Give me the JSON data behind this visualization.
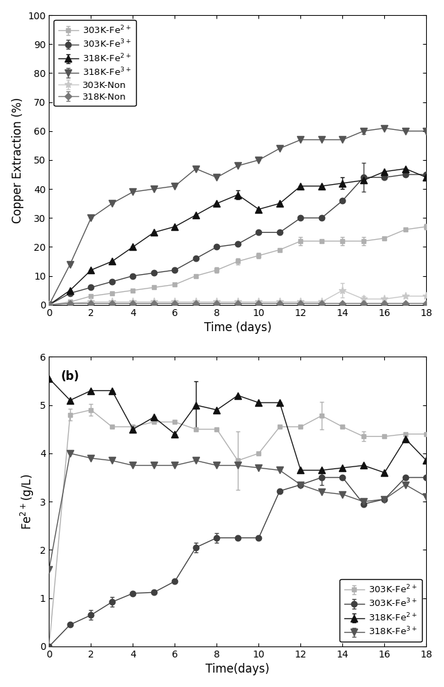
{
  "panel_a": {
    "xlabel": "Time (days)",
    "ylabel": "Copper Extraction (%)",
    "xlim": [
      0,
      18
    ],
    "ylim": [
      0,
      100
    ],
    "xticks": [
      0,
      2,
      4,
      6,
      8,
      10,
      12,
      14,
      16,
      18
    ],
    "yticks": [
      0,
      10,
      20,
      30,
      40,
      50,
      60,
      70,
      80,
      90,
      100
    ],
    "series": {
      "303K-Fe2+": {
        "x": [
          0,
          1,
          2,
          3,
          4,
          5,
          6,
          7,
          8,
          9,
          10,
          11,
          12,
          13,
          14,
          15,
          16,
          17,
          18
        ],
        "y": [
          0,
          1,
          3,
          4,
          5,
          6,
          7,
          10,
          12,
          15,
          17,
          19,
          22,
          22,
          22,
          22,
          23,
          26,
          27
        ],
        "yerr": [
          0,
          0,
          0,
          0,
          0,
          0,
          0,
          0,
          1.0,
          1.0,
          1.0,
          0,
          1.5,
          0,
          1.5,
          1.5,
          0,
          0,
          1.0
        ],
        "color": "#b0b0b0",
        "marker": "s",
        "markersize": 5,
        "label": "303K-Fe$^{2+}$"
      },
      "303K-Fe3+": {
        "x": [
          0,
          1,
          2,
          3,
          4,
          5,
          6,
          7,
          8,
          9,
          10,
          11,
          12,
          13,
          14,
          15,
          16,
          17,
          18
        ],
        "y": [
          0,
          4,
          6,
          8,
          10,
          11,
          12,
          16,
          20,
          21,
          25,
          25,
          30,
          30,
          36,
          44,
          44,
          45,
          45
        ],
        "yerr": [
          0,
          0,
          0,
          0,
          0,
          0,
          0,
          0,
          0,
          0,
          0,
          0,
          0,
          0,
          0,
          5,
          0,
          0,
          0
        ],
        "color": "#404040",
        "marker": "o",
        "markersize": 6,
        "label": "303K-Fe$^{3+}$"
      },
      "318K-Fe2+": {
        "x": [
          0,
          1,
          2,
          3,
          4,
          5,
          6,
          7,
          8,
          9,
          10,
          11,
          12,
          13,
          14,
          15,
          16,
          17,
          18
        ],
        "y": [
          0,
          5,
          12,
          15,
          20,
          25,
          27,
          31,
          35,
          38,
          33,
          35,
          41,
          41,
          42,
          43,
          46,
          47,
          44
        ],
        "yerr": [
          0,
          0,
          0,
          0,
          0,
          0,
          0,
          0,
          0,
          1.5,
          0,
          0,
          0,
          0,
          2,
          0,
          0,
          0,
          0
        ],
        "color": "#111111",
        "marker": "^",
        "markersize": 7,
        "label": "318K-Fe$^{2+}$"
      },
      "318K-Fe3+": {
        "x": [
          0,
          1,
          2,
          3,
          4,
          5,
          6,
          7,
          8,
          9,
          10,
          11,
          12,
          13,
          14,
          15,
          16,
          17,
          18
        ],
        "y": [
          0,
          14,
          30,
          35,
          39,
          40,
          41,
          47,
          44,
          48,
          50,
          54,
          57,
          57,
          57,
          60,
          61,
          60,
          60
        ],
        "yerr": [
          0,
          0,
          0,
          0,
          0,
          0,
          0,
          0,
          0,
          0,
          0,
          0,
          0,
          0,
          0,
          1,
          0,
          0,
          0
        ],
        "color": "#555555",
        "marker": "v",
        "markersize": 7,
        "label": "318K-Fe$^{3+}$"
      },
      "303K-Non": {
        "x": [
          0,
          1,
          2,
          3,
          4,
          5,
          6,
          7,
          8,
          9,
          10,
          11,
          12,
          13,
          14,
          15,
          16,
          17,
          18
        ],
        "y": [
          0,
          0.5,
          1,
          1,
          1,
          1,
          1,
          1,
          1,
          1,
          1,
          1,
          1,
          1,
          5,
          2,
          2,
          3,
          3
        ],
        "yerr": [
          0,
          0,
          0,
          0,
          0,
          0,
          0,
          0,
          0,
          0,
          0,
          0,
          0,
          0,
          2.5,
          1,
          0,
          0,
          0
        ],
        "color": "#c8c8c8",
        "marker": "*",
        "markersize": 8,
        "label": "303K-Non"
      },
      "318K-Non": {
        "x": [
          0,
          1,
          2,
          3,
          4,
          5,
          6,
          7,
          8,
          9,
          10,
          11,
          12,
          13,
          14,
          15,
          16,
          17,
          18
        ],
        "y": [
          0,
          0.5,
          0.5,
          0.5,
          0.5,
          0.5,
          0.5,
          0.5,
          0.5,
          0.5,
          0.5,
          0.5,
          0.5,
          0.5,
          0.5,
          0.5,
          0.5,
          0.5,
          0.5
        ],
        "yerr": [
          0,
          0,
          0,
          0,
          0,
          0,
          0,
          0,
          0,
          0,
          0,
          0,
          0,
          0,
          0,
          0,
          0,
          0,
          0
        ],
        "color": "#777777",
        "marker": "D",
        "markersize": 5,
        "label": "318K-Non"
      }
    },
    "legend_order": [
      "303K-Fe2+",
      "303K-Fe3+",
      "318K-Fe2+",
      "318K-Fe3+",
      "303K-Non",
      "318K-Non"
    ]
  },
  "panel_b": {
    "title": "(b)",
    "xlabel": "Time(days)",
    "ylabel": "Fe$^{2+}$(g/L)",
    "xlim": [
      0,
      18
    ],
    "ylim": [
      0,
      6
    ],
    "xticks": [
      0,
      2,
      4,
      6,
      8,
      10,
      12,
      14,
      16,
      18
    ],
    "yticks": [
      0,
      1,
      2,
      3,
      4,
      5,
      6
    ],
    "series": {
      "303K-Fe2+": {
        "x": [
          0,
          1,
          2,
          3,
          4,
          5,
          6,
          7,
          8,
          9,
          10,
          11,
          12,
          13,
          14,
          15,
          16,
          17,
          18
        ],
        "y": [
          0,
          4.8,
          4.9,
          4.55,
          4.55,
          4.65,
          4.65,
          4.5,
          4.5,
          3.85,
          4.0,
          4.55,
          4.55,
          4.78,
          4.55,
          4.35,
          4.35,
          4.4,
          4.4
        ],
        "yerr": [
          0,
          0.12,
          0.12,
          0,
          0,
          0,
          0,
          0,
          0,
          0.6,
          0,
          0,
          0,
          0.28,
          0,
          0.1,
          0,
          0,
          0
        ],
        "color": "#b0b0b0",
        "marker": "s",
        "markersize": 5,
        "label": "303K-Fe$^{2+}$"
      },
      "303K-Fe3+": {
        "x": [
          0,
          1,
          2,
          3,
          4,
          5,
          6,
          7,
          8,
          9,
          10,
          11,
          12,
          13,
          14,
          15,
          16,
          17,
          18
        ],
        "y": [
          0,
          0.45,
          0.65,
          0.92,
          1.1,
          1.12,
          1.35,
          2.05,
          2.25,
          2.25,
          2.25,
          3.22,
          3.35,
          3.5,
          3.5,
          2.95,
          3.05,
          3.5,
          3.5
        ],
        "yerr": [
          0,
          0,
          0.1,
          0.1,
          0,
          0,
          0,
          0.1,
          0.1,
          0,
          0,
          0,
          0,
          0.15,
          0,
          0,
          0,
          0,
          0
        ],
        "color": "#404040",
        "marker": "o",
        "markersize": 6,
        "label": "303K-Fe$^{3+}$"
      },
      "318K-Fe2+": {
        "x": [
          0,
          1,
          2,
          3,
          4,
          5,
          6,
          7,
          8,
          9,
          10,
          11,
          12,
          13,
          14,
          15,
          16,
          17,
          18
        ],
        "y": [
          5.55,
          5.1,
          5.3,
          5.3,
          4.5,
          4.75,
          4.4,
          5.0,
          4.9,
          5.2,
          5.05,
          5.05,
          3.65,
          3.65,
          3.7,
          3.75,
          3.6,
          4.3,
          3.85
        ],
        "yerr": [
          0,
          0,
          0,
          0,
          0,
          0,
          0,
          0.5,
          0,
          0,
          0,
          0,
          0,
          0,
          0,
          0,
          0,
          0,
          0
        ],
        "color": "#111111",
        "marker": "^",
        "markersize": 7,
        "label": "318K-Fe$^{2+}$"
      },
      "318K-Fe3+": {
        "x": [
          0,
          1,
          2,
          3,
          4,
          5,
          6,
          7,
          8,
          9,
          10,
          11,
          12,
          13,
          14,
          15,
          16,
          17,
          18
        ],
        "y": [
          1.6,
          4.0,
          3.9,
          3.85,
          3.75,
          3.75,
          3.75,
          3.85,
          3.75,
          3.75,
          3.7,
          3.65,
          3.35,
          3.2,
          3.15,
          3.0,
          3.05,
          3.35,
          3.1
        ],
        "yerr": [
          0,
          0,
          0,
          0,
          0,
          0,
          0,
          0,
          0,
          0,
          0,
          0,
          0,
          0,
          0,
          0,
          0,
          0,
          0
        ],
        "color": "#555555",
        "marker": "v",
        "markersize": 7,
        "label": "318K-Fe$^{3+}$"
      }
    },
    "legend_order": [
      "303K-Fe2+",
      "303K-Fe3+",
      "318K-Fe2+",
      "318K-Fe3+"
    ]
  }
}
